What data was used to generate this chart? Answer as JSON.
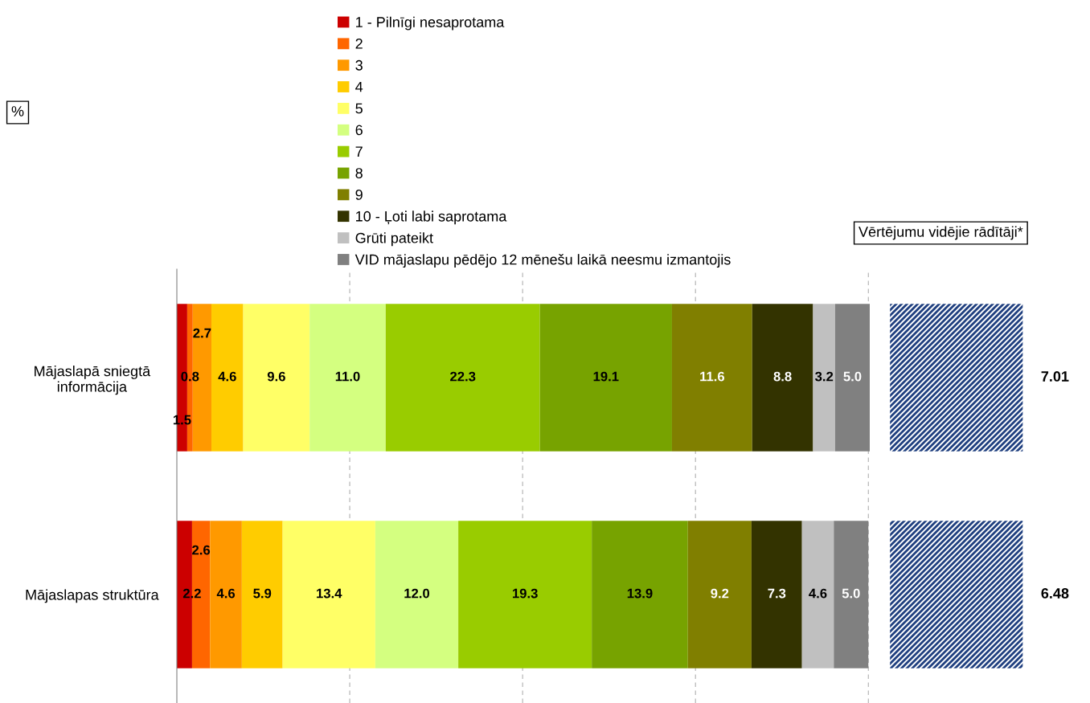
{
  "chart_data": [
    {
      "type": "bar",
      "orientation": "horizontal",
      "stacked": true,
      "categories": [
        "Mājaslapā sniegtā\ninformācija",
        "Mājaslapas struktūra"
      ],
      "series": [
        {
          "name": "1 - Pilnīgi nesaprotama",
          "color": "#cc0000",
          "values": [
            1.5,
            2.2
          ],
          "value_labels": [
            "1.5",
            "2.2"
          ]
        },
        {
          "name": "2",
          "color": "#ff6600",
          "values": [
            0.8,
            2.6
          ],
          "value_labels": [
            "0.8",
            "2.6"
          ]
        },
        {
          "name": "3",
          "color": "#ff9900",
          "values": [
            2.7,
            4.6
          ],
          "value_labels": [
            "2.7",
            "4.6"
          ]
        },
        {
          "name": "4",
          "color": "#ffcc00",
          "values": [
            4.6,
            5.9
          ],
          "value_labels": [
            "4.6",
            "5.9"
          ]
        },
        {
          "name": "5",
          "color": "#ffff66",
          "values": [
            9.6,
            13.4
          ],
          "value_labels": [
            "9.6",
            "13.4"
          ]
        },
        {
          "name": "6",
          "color": "#d4ff80",
          "values": [
            11.0,
            12.0
          ],
          "value_labels": [
            "11.0",
            "12.0"
          ]
        },
        {
          "name": "7",
          "color": "#99cc00",
          "values": [
            22.3,
            19.3
          ],
          "value_labels": [
            "22.3",
            "19.3"
          ]
        },
        {
          "name": "8",
          "color": "#77a300",
          "values": [
            19.1,
            13.9
          ],
          "value_labels": [
            "19.1",
            "13.9"
          ]
        },
        {
          "name": "9",
          "color": "#807f00",
          "values": [
            11.6,
            9.2
          ],
          "value_labels": [
            "11.6",
            "9.2"
          ]
        },
        {
          "name": "10 - Ļoti labi saprotama",
          "color": "#333300",
          "values": [
            8.8,
            7.3
          ],
          "value_labels": [
            "8.8",
            "7.3"
          ]
        },
        {
          "name": "Grūti pateikt",
          "color": "#c0c0c0",
          "values": [
            3.2,
            4.6
          ],
          "value_labels": [
            "3.2",
            "4.6"
          ]
        },
        {
          "name": "VID mājaslapu pēdējo 12 mēnešu laikā neesmu izmantojis",
          "color": "#808080",
          "values": [
            5.0,
            5.0
          ],
          "value_labels": [
            "5.0",
            "5.0"
          ]
        }
      ],
      "xlim": [
        0,
        100.2
      ],
      "xticks": [
        {
          "value": 25,
          "label": null
        },
        {
          "value": 50,
          "label": null
        },
        {
          "value": 75,
          "label": null
        },
        {
          "value": 100,
          "label": null
        }
      ],
      "tick_labels": "y",
      "grid": "x",
      "legend": "top",
      "annotations": [
        "%"
      ]
    },
    {
      "type": "other",
      "title": "Vērtējumu vidējie rādītāji*",
      "categories": [
        null,
        null
      ],
      "values": [
        7.01,
        6.48
      ],
      "color": "#1f3f7f",
      "data_labels": true
    }
  ]
}
